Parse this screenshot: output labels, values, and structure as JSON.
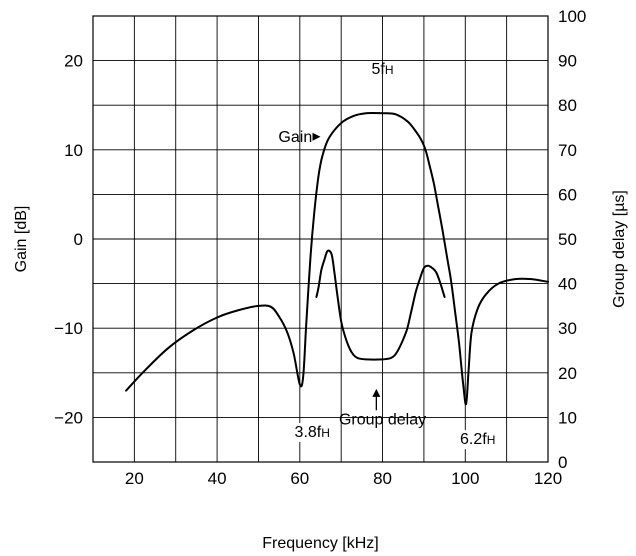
{
  "chart_data": {
    "type": "line",
    "xlabel": "Frequency [kHz]",
    "ylabel_left": "Gain [dB]",
    "ylabel_right": "Group delay [µs]",
    "xlim": [
      10,
      120
    ],
    "ylim_left": [
      -25,
      25
    ],
    "ylim_right": [
      0,
      100
    ],
    "grid": true,
    "x_ticks": [
      20,
      40,
      60,
      80,
      100,
      120
    ],
    "x_tick_labels": [
      "20",
      "40",
      "60",
      "80",
      "100",
      "120"
    ],
    "y_left_ticks": [
      20,
      10,
      0,
      -10,
      -20
    ],
    "y_left_tick_labels": [
      "20",
      "10",
      "0",
      "−10",
      "−20"
    ],
    "y_right_ticks": [
      100,
      90,
      80,
      70,
      60,
      50,
      40,
      30,
      20,
      10,
      0
    ],
    "y_right_tick_labels": [
      "100",
      "90",
      "80",
      "70",
      "60",
      "50",
      "40",
      "30",
      "20",
      "10",
      "0"
    ],
    "series": [
      {
        "name": "Gain",
        "axis": "left",
        "x": [
          18,
          22,
          28,
          34,
          40,
          45,
          50,
          53,
          55,
          57,
          58.5,
          60,
          60.8,
          61.5,
          62.5,
          63.5,
          64.5,
          65.5,
          67,
          70,
          73,
          76,
          80,
          83,
          86,
          88,
          89.5,
          90.5,
          91.5,
          92.5,
          93.5,
          94.5,
          95.5,
          96.5,
          97.5,
          98.5,
          99.5,
          100.2,
          100.8,
          101.5,
          103,
          105,
          108,
          112,
          116,
          120
        ],
        "y": [
          -17,
          -15,
          -12.3,
          -10.3,
          -8.8,
          -8,
          -7.5,
          -7.6,
          -8.7,
          -10.5,
          -12.8,
          -16.3,
          -15.5,
          -10,
          -2.5,
          3,
          7,
          9.4,
          11.3,
          13,
          13.8,
          14.1,
          14.1,
          14,
          13.2,
          12.1,
          11,
          9.8,
          8,
          6,
          3.5,
          1,
          -1.8,
          -4.5,
          -8,
          -11.7,
          -16.3,
          -18.5,
          -14.7,
          -10.5,
          -7.8,
          -6.2,
          -5,
          -4.5,
          -4.5,
          -4.8
        ]
      },
      {
        "name": "Group delay",
        "axis": "right",
        "x": [
          64,
          64.5,
          65.2,
          66,
          66.5,
          67,
          67.7,
          68.3,
          69,
          70,
          71,
          72,
          73,
          74,
          76,
          80,
          82,
          83,
          84,
          85,
          86,
          87,
          88,
          89,
          90,
          91,
          92,
          93,
          94,
          95
        ],
        "y": [
          37,
          39,
          43,
          45.5,
          47,
          47.4,
          46.5,
          43,
          38,
          31.5,
          28,
          25.5,
          24,
          23.3,
          23,
          23,
          23.3,
          24,
          25.5,
          27.5,
          30,
          34,
          38,
          41,
          43.5,
          44,
          43.5,
          42.5,
          40,
          37
        ]
      }
    ],
    "annotations": [
      {
        "text": "5f",
        "sub": "H",
        "x": 80,
        "y": 18.5,
        "axis": "left"
      },
      {
        "text": "Gain",
        "x": 63,
        "y": 10.9,
        "axis": "left"
      },
      {
        "text": "Group delay",
        "x": 80,
        "y": -20.8,
        "axis": "left"
      },
      {
        "text": "3.8f",
        "sub": "H",
        "x": 63,
        "y": -22.2,
        "axis": "left"
      },
      {
        "text": "6.2f",
        "sub": "H",
        "x": 103,
        "y": -23,
        "axis": "left"
      }
    ]
  }
}
